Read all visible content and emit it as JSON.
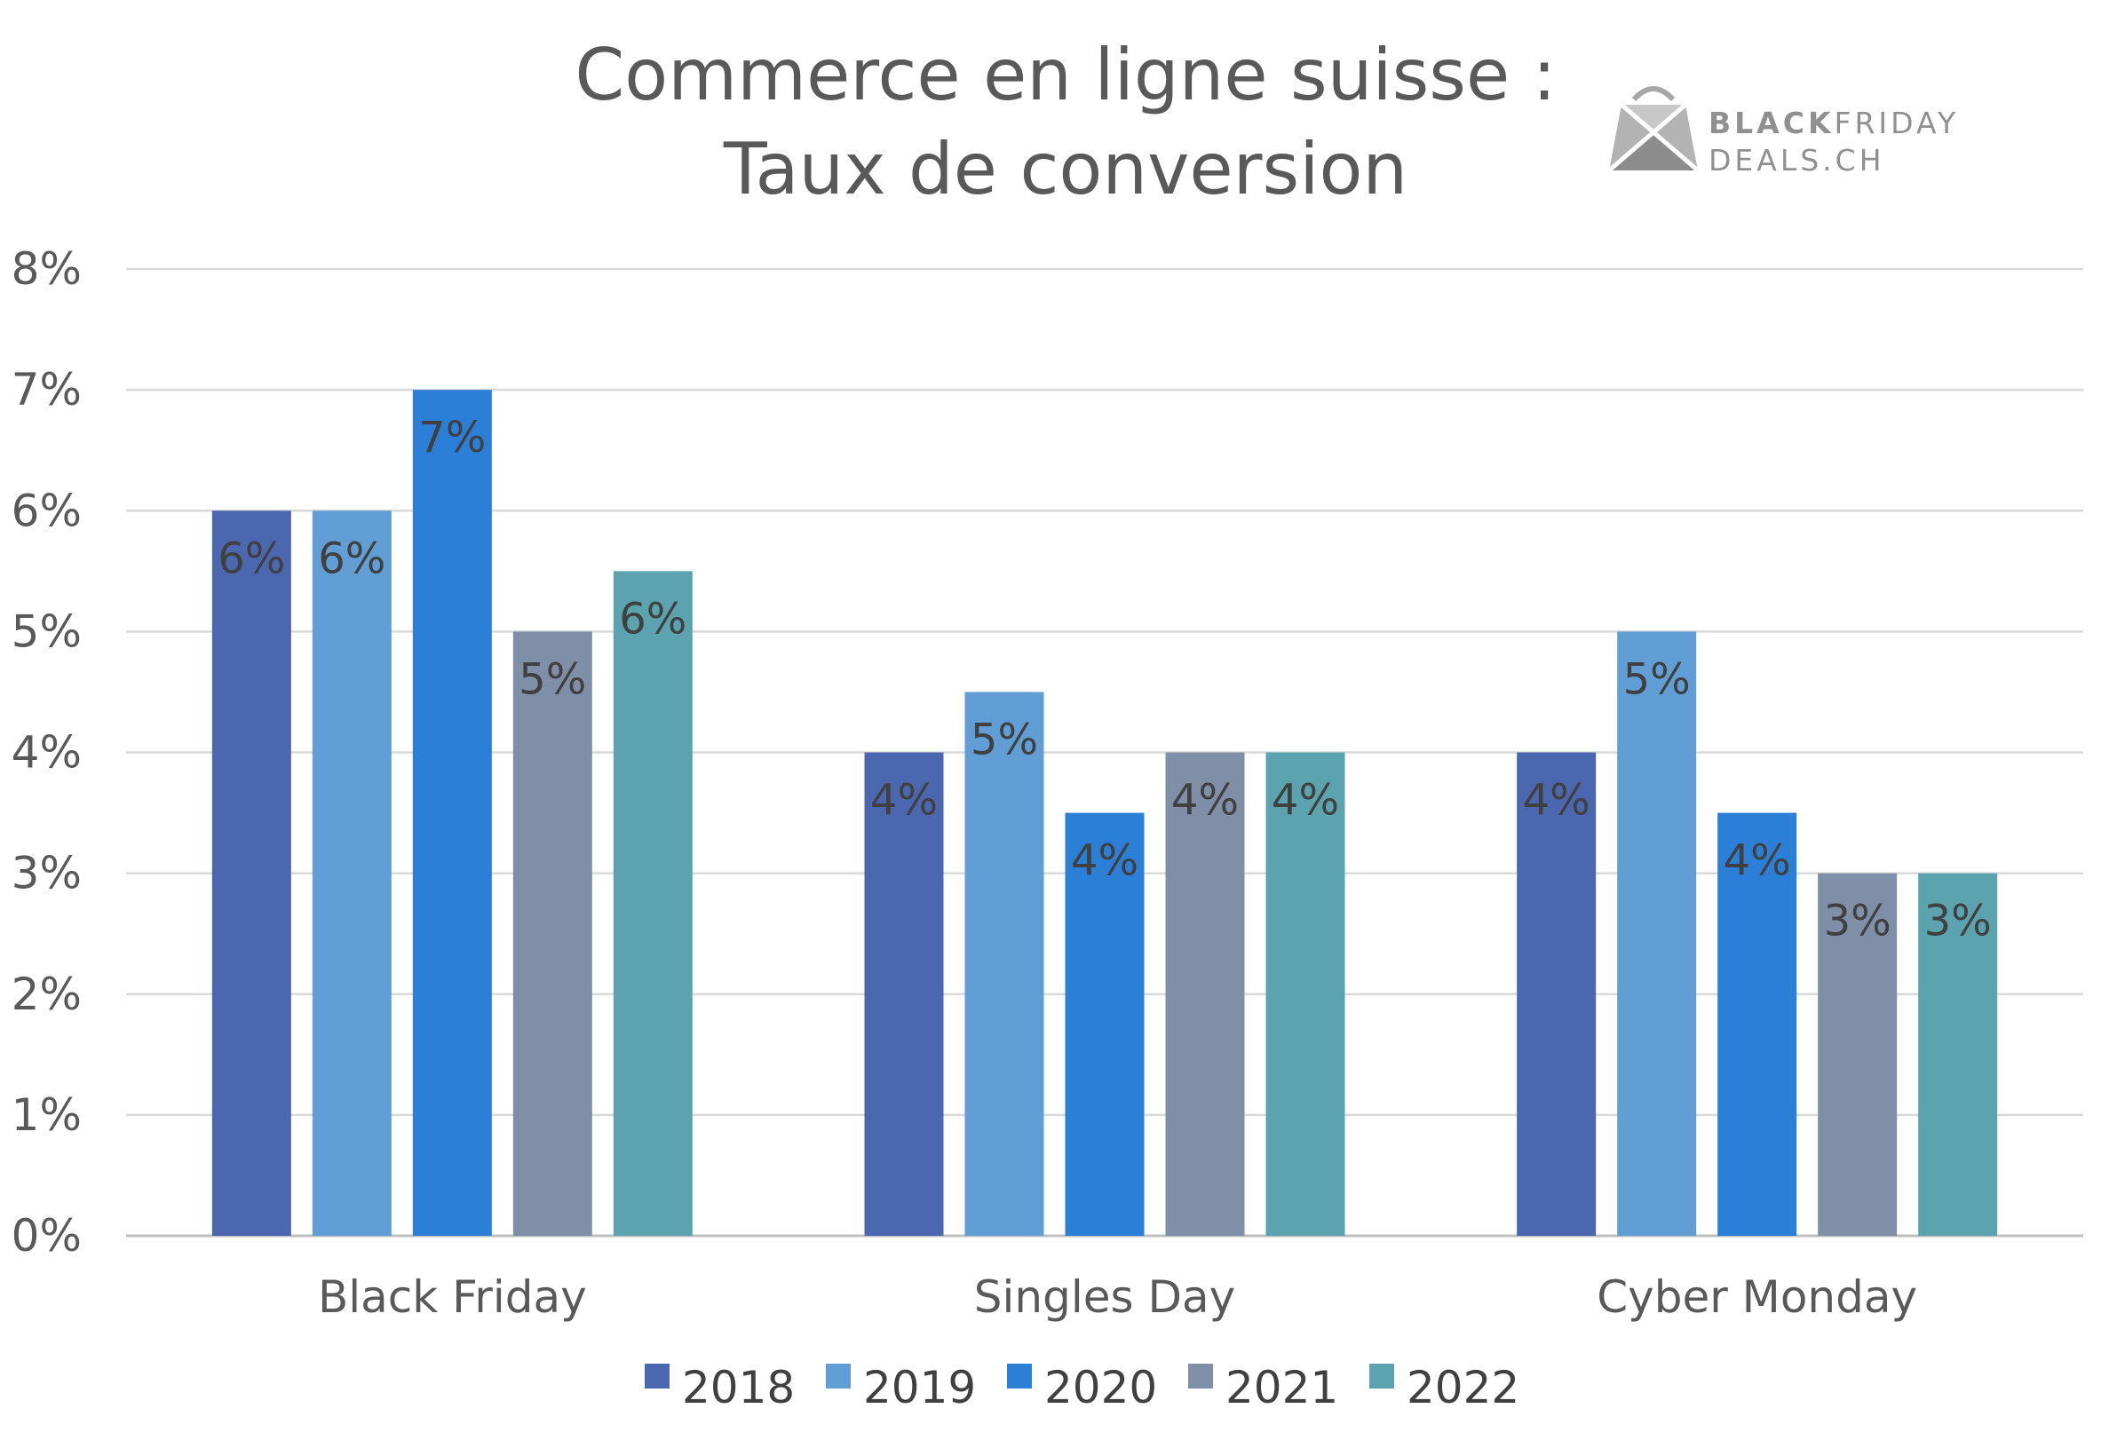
{
  "chart_data": {
    "type": "bar",
    "title": "Commerce en ligne suisse :",
    "subtitle": "Taux de conversion",
    "categories": [
      "Black Friday",
      "Singles Day",
      "Cyber Monday"
    ],
    "series": [
      {
        "name": "2018",
        "color": "#4a67af",
        "values": [
          6,
          4,
          4
        ],
        "labels": [
          "6%",
          "4%",
          "4%"
        ]
      },
      {
        "name": "2019",
        "color": "#619ed5",
        "values": [
          6,
          4.5,
          5
        ],
        "labels": [
          "6%",
          "5%",
          "5%"
        ]
      },
      {
        "name": "2020",
        "color": "#2b7fd7",
        "values": [
          7,
          3.5,
          3.5
        ],
        "labels": [
          "7%",
          "4%",
          "4%"
        ]
      },
      {
        "name": "2021",
        "color": "#808fa8",
        "values": [
          5,
          4,
          3
        ],
        "labels": [
          "5%",
          "4%",
          "3%"
        ]
      },
      {
        "name": "2022",
        "color": "#5ba3ae",
        "values": [
          5.5,
          4,
          3
        ],
        "labels": [
          "6%",
          "4%",
          "3%"
        ]
      }
    ],
    "ylim": [
      0,
      8
    ],
    "yticks": [
      0,
      1,
      2,
      3,
      4,
      5,
      6,
      7,
      8
    ],
    "ytick_labels": [
      "0%",
      "1%",
      "2%",
      "3%",
      "4%",
      "5%",
      "6%",
      "7%",
      "8%"
    ],
    "xlabel": "",
    "ylabel": "",
    "grid": true,
    "legend_position": "bottom"
  },
  "logo": {
    "word_bold": "BLACK",
    "word_regular": "FRIDAY",
    "line2": "DEALS.CH",
    "icon": "shopping-bag-icon"
  }
}
